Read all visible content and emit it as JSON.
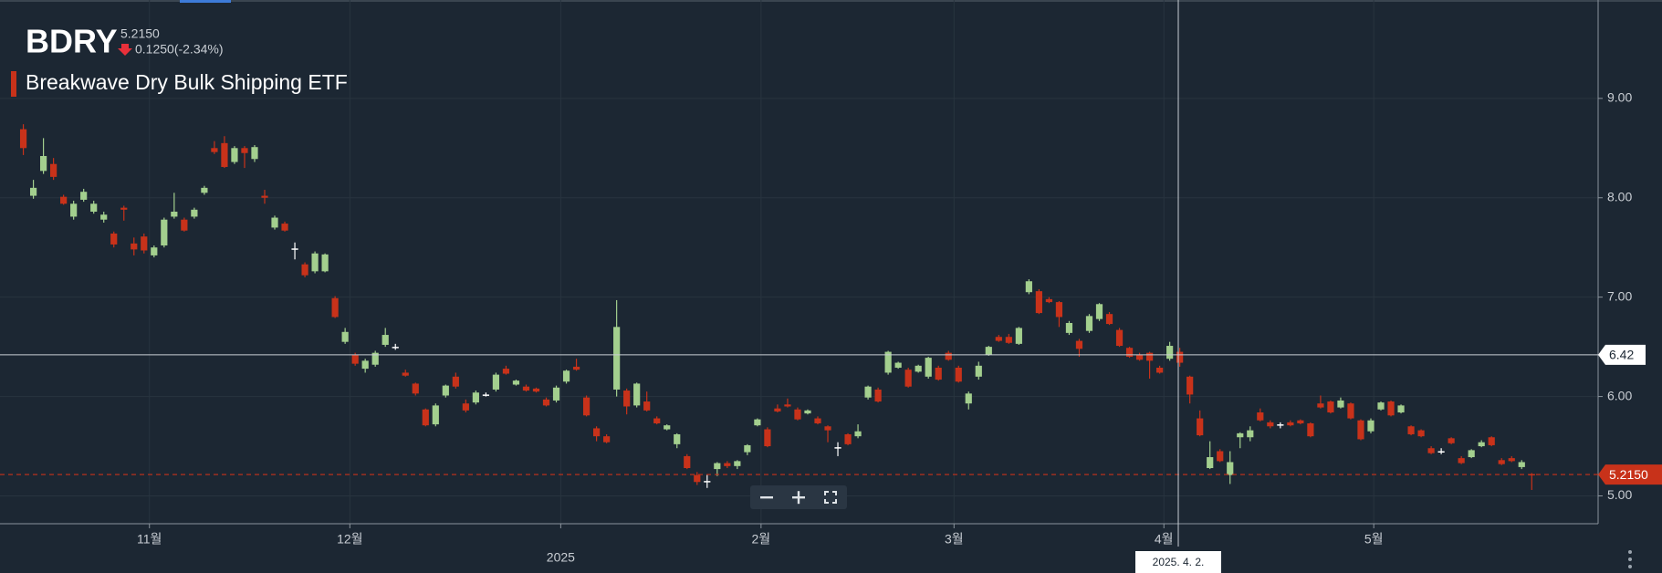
{
  "chart_data": {
    "type": "candlestick",
    "symbol": "BDRY",
    "name": "Breakwave Dry Bulk Shipping ETF",
    "change": "0.1250(-2.34%)",
    "last": {
      "value": 5.215,
      "label": "5.2150"
    },
    "crosshair": {
      "value": 6.42,
      "date": "2025. 4. 2."
    },
    "up_color": "#a3cf8e",
    "down_color": "#c8321a",
    "flat_color": "#ffffff",
    "grid": true,
    "ylim": [
      4.72,
      9.99
    ],
    "yticks": [
      {
        "value": 5,
        "label": "5.00"
      },
      {
        "value": 6,
        "label": "6.00"
      },
      {
        "value": 7,
        "label": "7.00"
      },
      {
        "value": 8,
        "label": "8.00"
      },
      {
        "value": 9,
        "label": "9.00"
      }
    ],
    "xlim": [
      -2.32,
      156.6
    ],
    "xticks": [
      {
        "value": 12.54,
        "label": "11월"
      },
      {
        "value": 32.47,
        "label": "12월"
      },
      {
        "value": 73.36,
        "label": "2월"
      },
      {
        "value": 92.55,
        "label": "3월"
      },
      {
        "value": 113.42,
        "label": "4월"
      },
      {
        "value": 134.29,
        "label": "5월"
      }
    ],
    "year_ticks": [
      {
        "value": 53.44,
        "label": "2025"
      }
    ],
    "candles": [
      [
        8.69,
        8.74,
        8.43,
        8.5
      ],
      [
        8.02,
        8.18,
        7.99,
        8.1
      ],
      [
        8.27,
        8.6,
        8.24,
        8.42
      ],
      [
        8.34,
        8.4,
        8.18,
        8.21
      ],
      [
        8.01,
        8.03,
        7.93,
        7.94
      ],
      [
        7.81,
        7.97,
        7.78,
        7.94
      ],
      [
        7.98,
        8.09,
        7.96,
        8.06
      ],
      [
        7.86,
        7.97,
        7.84,
        7.94
      ],
      [
        7.78,
        7.86,
        7.75,
        7.83
      ],
      [
        7.64,
        7.66,
        7.5,
        7.53
      ],
      [
        7.9,
        7.92,
        7.77,
        7.88
      ],
      [
        7.54,
        7.6,
        7.42,
        7.48
      ],
      [
        7.61,
        7.64,
        7.44,
        7.47
      ],
      [
        7.42,
        7.52,
        7.4,
        7.5
      ],
      [
        7.52,
        7.8,
        7.5,
        7.78
      ],
      [
        7.81,
        8.05,
        7.79,
        7.86
      ],
      [
        7.78,
        7.8,
        7.66,
        7.67
      ],
      [
        7.81,
        7.9,
        7.79,
        7.88
      ],
      [
        8.05,
        8.12,
        8.03,
        8.1
      ],
      [
        8.5,
        8.57,
        8.44,
        8.46
      ],
      [
        8.55,
        8.62,
        8.3,
        8.31
      ],
      [
        8.36,
        8.52,
        8.34,
        8.5
      ],
      [
        8.5,
        8.52,
        8.3,
        8.45
      ],
      [
        8.39,
        8.53,
        8.36,
        8.51
      ],
      [
        8.02,
        8.08,
        7.94,
        8.0
      ],
      [
        7.7,
        7.82,
        7.68,
        7.8
      ],
      [
        7.74,
        7.76,
        7.66,
        7.67
      ],
      [
        7.49,
        7.55,
        7.38,
        7.49
      ],
      [
        7.33,
        7.35,
        7.2,
        7.22
      ],
      [
        7.26,
        7.46,
        7.24,
        7.44
      ],
      [
        7.26,
        7.44,
        7.25,
        7.43
      ],
      [
        6.99,
        7.01,
        6.79,
        6.8
      ],
      [
        6.55,
        6.69,
        6.53,
        6.65
      ],
      [
        6.42,
        6.44,
        6.31,
        6.33
      ],
      [
        6.28,
        6.38,
        6.24,
        6.36
      ],
      [
        6.32,
        6.46,
        6.3,
        6.44
      ],
      [
        6.52,
        6.69,
        6.5,
        6.62
      ],
      [
        6.5,
        6.53,
        6.47,
        6.5
      ],
      [
        6.24,
        6.27,
        6.2,
        6.21
      ],
      [
        6.13,
        6.14,
        6.01,
        6.03
      ],
      [
        5.87,
        5.88,
        5.7,
        5.71
      ],
      [
        5.72,
        5.93,
        5.7,
        5.91
      ],
      [
        6.01,
        6.12,
        5.99,
        6.11
      ],
      [
        6.2,
        6.24,
        6.08,
        6.1
      ],
      [
        5.93,
        5.97,
        5.84,
        5.86
      ],
      [
        5.94,
        6.06,
        5.92,
        6.04
      ],
      [
        6.02,
        6.04,
        6.0,
        6.02
      ],
      [
        6.07,
        6.24,
        6.05,
        6.22
      ],
      [
        6.28,
        6.31,
        6.22,
        6.23
      ],
      [
        6.12,
        6.17,
        6.11,
        6.16
      ],
      [
        6.1,
        6.12,
        6.05,
        6.06
      ],
      [
        6.08,
        6.09,
        6.04,
        6.05
      ],
      [
        5.97,
        5.99,
        5.9,
        5.91
      ],
      [
        5.96,
        6.11,
        5.94,
        6.09
      ],
      [
        6.15,
        6.27,
        6.13,
        6.26
      ],
      [
        6.3,
        6.38,
        6.26,
        6.27
      ],
      [
        5.99,
        6.01,
        5.8,
        5.81
      ],
      [
        5.68,
        5.7,
        5.55,
        5.6
      ],
      [
        5.6,
        5.62,
        5.53,
        5.54
      ],
      [
        6.07,
        6.97,
        6.0,
        6.7
      ],
      [
        6.06,
        6.08,
        5.82,
        5.9
      ],
      [
        5.91,
        6.14,
        5.89,
        6.13
      ],
      [
        5.95,
        6.05,
        5.85,
        5.86
      ],
      [
        5.78,
        5.8,
        5.72,
        5.73
      ],
      [
        5.67,
        5.72,
        5.66,
        5.71
      ],
      [
        5.52,
        5.63,
        5.48,
        5.62
      ],
      [
        5.4,
        5.42,
        5.27,
        5.28
      ],
      [
        5.21,
        5.24,
        5.11,
        5.14
      ],
      [
        5.15,
        5.21,
        5.08,
        5.15
      ],
      [
        5.27,
        5.34,
        5.2,
        5.33
      ],
      [
        5.33,
        5.35,
        5.28,
        5.3
      ],
      [
        5.3,
        5.36,
        5.27,
        5.35
      ],
      [
        5.44,
        5.52,
        5.41,
        5.51
      ],
      [
        5.71,
        5.78,
        5.7,
        5.77
      ],
      [
        5.67,
        5.69,
        5.49,
        5.5
      ],
      [
        5.88,
        5.92,
        5.84,
        5.85
      ],
      [
        5.92,
        5.98,
        5.89,
        5.9
      ],
      [
        5.87,
        5.89,
        5.76,
        5.77
      ],
      [
        5.83,
        5.87,
        5.82,
        5.86
      ],
      [
        5.78,
        5.8,
        5.72,
        5.73
      ],
      [
        5.7,
        5.71,
        5.54,
        5.66
      ],
      [
        5.49,
        5.54,
        5.4,
        5.49
      ],
      [
        5.62,
        5.63,
        5.51,
        5.52
      ],
      [
        5.6,
        5.72,
        5.58,
        5.65
      ],
      [
        5.99,
        6.11,
        5.97,
        6.1
      ],
      [
        6.07,
        6.09,
        5.94,
        5.95
      ],
      [
        6.24,
        6.46,
        6.22,
        6.45
      ],
      [
        6.29,
        6.35,
        6.28,
        6.34
      ],
      [
        6.27,
        6.29,
        6.09,
        6.1
      ],
      [
        6.25,
        6.32,
        6.24,
        6.31
      ],
      [
        6.2,
        6.4,
        6.18,
        6.39
      ],
      [
        6.29,
        6.31,
        6.16,
        6.17
      ],
      [
        6.44,
        6.46,
        6.36,
        6.37
      ],
      [
        6.29,
        6.31,
        6.14,
        6.15
      ],
      [
        5.93,
        6.05,
        5.87,
        6.03
      ],
      [
        6.2,
        6.35,
        6.17,
        6.31
      ],
      [
        6.42,
        6.51,
        6.41,
        6.5
      ],
      [
        6.6,
        6.62,
        6.55,
        6.56
      ],
      [
        6.6,
        6.63,
        6.53,
        6.54
      ],
      [
        6.53,
        6.7,
        6.52,
        6.69
      ],
      [
        7.05,
        7.18,
        7.03,
        7.16
      ],
      [
        7.06,
        7.08,
        6.83,
        6.84
      ],
      [
        6.98,
        7.0,
        6.94,
        6.95
      ],
      [
        6.95,
        6.96,
        6.7,
        6.8
      ],
      [
        6.64,
        6.76,
        6.62,
        6.74
      ],
      [
        6.56,
        6.58,
        6.4,
        6.48
      ],
      [
        6.66,
        6.83,
        6.64,
        6.81
      ],
      [
        6.78,
        6.94,
        6.76,
        6.93
      ],
      [
        6.83,
        6.85,
        6.72,
        6.73
      ],
      [
        6.67,
        6.69,
        6.5,
        6.51
      ],
      [
        6.49,
        6.5,
        6.39,
        6.4
      ],
      [
        6.42,
        6.44,
        6.36,
        6.37
      ],
      [
        6.44,
        6.45,
        6.18,
        6.36
      ],
      [
        6.29,
        6.31,
        6.23,
        6.24
      ],
      [
        6.38,
        6.55,
        6.36,
        6.51
      ],
      [
        6.45,
        6.49,
        6.3,
        6.34
      ],
      [
        6.2,
        6.21,
        5.93,
        6.02
      ],
      [
        5.78,
        5.86,
        5.6,
        5.61
      ],
      [
        5.28,
        5.55,
        5.27,
        5.39
      ],
      [
        5.45,
        5.47,
        5.34,
        5.35
      ],
      [
        5.21,
        5.45,
        5.12,
        5.34
      ],
      [
        5.59,
        5.64,
        5.48,
        5.63
      ],
      [
        5.59,
        5.7,
        5.55,
        5.66
      ],
      [
        5.84,
        5.88,
        5.75,
        5.76
      ],
      [
        5.74,
        5.76,
        5.68,
        5.7
      ],
      [
        5.72,
        5.74,
        5.68,
        5.72
      ],
      [
        5.74,
        5.76,
        5.7,
        5.71
      ],
      [
        5.76,
        5.77,
        5.72,
        5.73
      ],
      [
        5.73,
        5.74,
        5.59,
        5.6
      ],
      [
        5.93,
        6.01,
        5.88,
        5.89
      ],
      [
        5.95,
        5.96,
        5.83,
        5.84
      ],
      [
        5.89,
        5.99,
        5.88,
        5.96
      ],
      [
        5.93,
        5.94,
        5.77,
        5.78
      ],
      [
        5.76,
        5.77,
        5.56,
        5.57
      ],
      [
        5.65,
        5.78,
        5.63,
        5.76
      ],
      [
        5.87,
        5.95,
        5.86,
        5.94
      ],
      [
        5.95,
        5.96,
        5.8,
        5.81
      ],
      [
        5.84,
        5.92,
        5.83,
        5.91
      ],
      [
        5.7,
        5.71,
        5.61,
        5.62
      ],
      [
        5.66,
        5.67,
        5.59,
        5.6
      ],
      [
        5.48,
        5.5,
        5.42,
        5.43
      ],
      [
        5.45,
        5.48,
        5.42,
        5.45
      ],
      [
        5.58,
        5.59,
        5.52,
        5.53
      ],
      [
        5.38,
        5.4,
        5.32,
        5.33
      ],
      [
        5.39,
        5.47,
        5.38,
        5.46
      ],
      [
        5.5,
        5.56,
        5.49,
        5.54
      ],
      [
        5.59,
        5.6,
        5.5,
        5.51
      ],
      [
        5.36,
        5.38,
        5.31,
        5.32
      ],
      [
        5.38,
        5.4,
        5.34,
        5.35
      ],
      [
        5.29,
        5.36,
        5.27,
        5.34
      ],
      [
        5.22,
        5.23,
        5.06,
        5.215
      ]
    ]
  }
}
